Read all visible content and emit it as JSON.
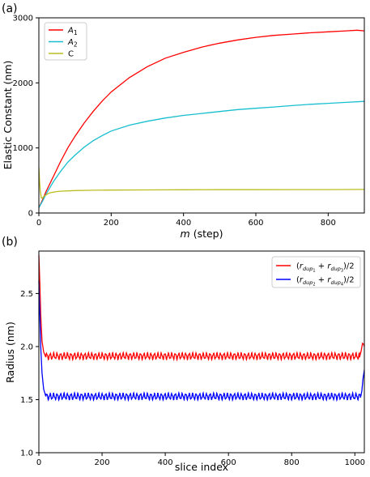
{
  "chart_data": [
    {
      "type": "line",
      "panel_label": "(a)",
      "xlabel_symbol": "m",
      "xlabel_unit": "(step)",
      "ylabel": "Elastic Constant (nm)",
      "xlim": [
        0,
        900
      ],
      "ylim": [
        0,
        3000
      ],
      "xticks": [
        0,
        200,
        400,
        600,
        800
      ],
      "yticks": [
        0,
        1000,
        2000,
        3000
      ],
      "legend_position": "upper-left",
      "series": [
        {
          "name": "A1",
          "label_base": "A",
          "label_sub": "1",
          "color": "#ff0000",
          "x": [
            0,
            10,
            20,
            40,
            60,
            80,
            100,
            125,
            150,
            175,
            200,
            250,
            300,
            350,
            400,
            450,
            500,
            550,
            600,
            650,
            700,
            750,
            800,
            850,
            880,
            900
          ],
          "y": [
            80,
            200,
            330,
            560,
            790,
            1000,
            1180,
            1380,
            1560,
            1720,
            1860,
            2080,
            2250,
            2380,
            2470,
            2550,
            2610,
            2660,
            2700,
            2730,
            2750,
            2770,
            2785,
            2800,
            2810,
            2800
          ]
        },
        {
          "name": "A2",
          "label_base": "A",
          "label_sub": "2",
          "color": "#17becf",
          "x": [
            0,
            10,
            20,
            40,
            60,
            80,
            100,
            125,
            150,
            175,
            200,
            250,
            300,
            350,
            400,
            450,
            500,
            550,
            600,
            650,
            700,
            750,
            800,
            850,
            900
          ],
          "y": [
            80,
            180,
            290,
            480,
            640,
            780,
            890,
            1010,
            1110,
            1190,
            1260,
            1350,
            1410,
            1460,
            1500,
            1530,
            1560,
            1590,
            1610,
            1630,
            1650,
            1670,
            1685,
            1700,
            1715
          ]
        },
        {
          "name": "C",
          "color": "#bcbd22",
          "x": [
            0,
            2,
            4,
            7,
            10,
            15,
            20,
            30,
            40,
            50,
            60,
            80,
            100,
            150,
            200,
            300,
            400,
            500,
            600,
            700,
            800,
            900
          ],
          "y": [
            700,
            480,
            330,
            230,
            230,
            260,
            280,
            310,
            320,
            330,
            335,
            340,
            345,
            350,
            352,
            355,
            357,
            358,
            359,
            360,
            360,
            362
          ]
        }
      ]
    },
    {
      "type": "line",
      "panel_label": "(b)",
      "xlabel": "slice index",
      "ylabel": "Radius (nm)",
      "xlim": [
        0,
        1030
      ],
      "ylim": [
        1.0,
        2.9
      ],
      "xticks": [
        0,
        200,
        400,
        600,
        800,
        1000
      ],
      "yticks": [
        1.0,
        1.5,
        2.0,
        2.5
      ],
      "ytick_labels": [
        "1.0",
        "1.5",
        "2.0",
        "2.5"
      ],
      "legend_position": "upper-right",
      "series": [
        {
          "name": "(r_dup1 + r_dup3)/2",
          "label_a": "1",
          "label_b": "3",
          "color": "#ff0000",
          "start": [
            [
              0,
              2.86
            ],
            [
              3,
              2.6
            ],
            [
              6,
              2.3
            ],
            [
              10,
              2.05
            ],
            [
              15,
              1.95
            ],
            [
              22,
              1.9
            ]
          ],
          "plateau": 1.91,
          "amplitude": 0.025,
          "period": 11,
          "plateau_range": [
            22,
            1015
          ],
          "end": [
            [
              1015,
              1.9
            ],
            [
              1020,
              1.96
            ],
            [
              1024,
              2.03
            ],
            [
              1028,
              2.02
            ],
            [
              1030,
              2.0
            ]
          ]
        },
        {
          "name": "(r_dup2 + r_dup4)/2",
          "label_a": "2",
          "label_b": "4",
          "color": "#0000ff",
          "start": [
            [
              0,
              2.62
            ],
            [
              3,
              2.3
            ],
            [
              6,
              2.0
            ],
            [
              10,
              1.75
            ],
            [
              15,
              1.6
            ],
            [
              22,
              1.53
            ]
          ],
          "plateau": 1.53,
          "amplitude": 0.025,
          "period": 11,
          "plateau_range": [
            22,
            1018
          ],
          "end": [
            [
              1018,
              1.52
            ],
            [
              1022,
              1.58
            ],
            [
              1026,
              1.7
            ],
            [
              1030,
              1.78
            ]
          ]
        }
      ]
    }
  ]
}
